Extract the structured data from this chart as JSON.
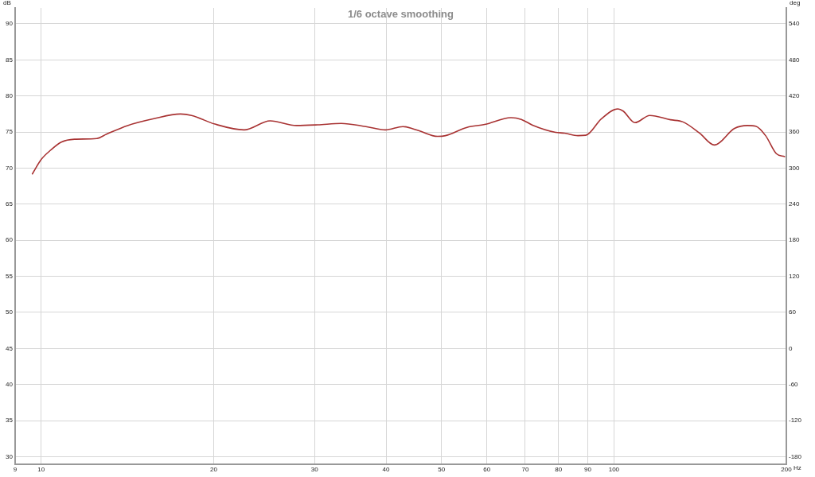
{
  "chart_data": {
    "type": "line",
    "title": "1/6 octave smoothing",
    "xlabel": "Hz",
    "ylabel": "dB",
    "y2label": "deg",
    "log": "x",
    "grid": true,
    "xlim": [
      9,
      200
    ],
    "xticks": [
      9,
      10,
      20,
      30,
      40,
      50,
      60,
      70,
      80,
      90,
      100,
      200
    ],
    "ylim": [
      28.9,
      92.2
    ],
    "yticks": [
      30,
      35,
      40,
      45,
      50,
      55,
      60,
      65,
      70,
      75,
      80,
      85,
      90
    ],
    "y2lim": [
      -193.2,
      566.4
    ],
    "y2ticks": [
      -180,
      -120,
      -60,
      0,
      60,
      120,
      180,
      240,
      300,
      360,
      420,
      480,
      540
    ],
    "series": [
      {
        "color": "#a83232",
        "x": [
          9.65,
          10.0,
          10.39,
          10.84,
          11.43,
          12.5,
          13.0,
          14.15,
          15.73,
          17.5,
          18.3,
          20.1,
          22.6,
          25.1,
          27.9,
          30.4,
          33.4,
          36.9,
          39.9,
          42.8,
          45.6,
          49.2,
          50.8,
          55.4,
          59.5,
          66.1,
          68.9,
          72.1,
          79.1,
          82.0,
          86.5,
          89.3,
          95.1,
          101.6,
          103.8,
          108.8,
          115.5,
          125.5,
          132.0,
          141.1,
          149.7,
          162.4,
          171.0,
          176.8,
          184.0,
          192.1,
          198.6
        ],
        "values": [
          69.2,
          71.2,
          72.5,
          73.6,
          74.0,
          74.1,
          74.7,
          75.9,
          76.85,
          77.5,
          77.3,
          76.1,
          75.3,
          76.55,
          75.9,
          76.0,
          76.2,
          75.75,
          75.3,
          75.75,
          75.2,
          74.4,
          74.5,
          75.65,
          76.05,
          77.0,
          76.75,
          75.95,
          74.95,
          74.85,
          74.5,
          74.55,
          76.85,
          78.2,
          77.9,
          76.3,
          77.3,
          76.7,
          76.4,
          74.85,
          73.2,
          75.5,
          75.9,
          75.8,
          74.5,
          72.0,
          71.6
        ]
      }
    ]
  }
}
